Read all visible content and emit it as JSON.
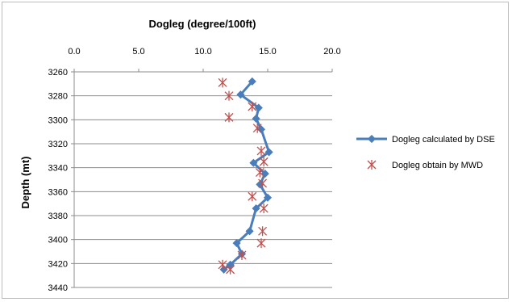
{
  "chart_data": {
    "type": "line",
    "title": "Dogleg (degree/100ft)",
    "xlabel": "",
    "ylabel": "Depth (mt)",
    "xlim": [
      0,
      20
    ],
    "ylim": [
      3260,
      3440
    ],
    "x_axis_position": "top",
    "y_axis_reversed": true,
    "x_ticks": [
      "0.0",
      "5.0",
      "10.0",
      "15.0",
      "20.0"
    ],
    "y_ticks": [
      "3260",
      "3280",
      "3300",
      "3320",
      "3340",
      "3360",
      "3380",
      "3400",
      "3420",
      "3440"
    ],
    "grid": "horizontal",
    "legend_position": "right",
    "series": [
      {
        "name": "Dogleg calculated by DSE",
        "style": "line-with-diamond-markers",
        "color": "#4a7ebb",
        "points": [
          {
            "x": 13.8,
            "y": 3268
          },
          {
            "x": 12.9,
            "y": 3279
          },
          {
            "x": 14.3,
            "y": 3290
          },
          {
            "x": 14.1,
            "y": 3299
          },
          {
            "x": 14.5,
            "y": 3308
          },
          {
            "x": 15.1,
            "y": 3327
          },
          {
            "x": 13.9,
            "y": 3336
          },
          {
            "x": 14.8,
            "y": 3345
          },
          {
            "x": 14.4,
            "y": 3354
          },
          {
            "x": 15.0,
            "y": 3365
          },
          {
            "x": 14.1,
            "y": 3374
          },
          {
            "x": 13.6,
            "y": 3393
          },
          {
            "x": 12.6,
            "y": 3403
          },
          {
            "x": 13.0,
            "y": 3412
          },
          {
            "x": 12.1,
            "y": 3421
          },
          {
            "x": 11.6,
            "y": 3425
          }
        ]
      },
      {
        "name": "Dogleg obtain by MWD",
        "style": "asterisk-markers",
        "color": "#c0504d",
        "points": [
          {
            "x": 11.5,
            "y": 3269
          },
          {
            "x": 12.0,
            "y": 3280
          },
          {
            "x": 13.8,
            "y": 3289
          },
          {
            "x": 12.0,
            "y": 3298
          },
          {
            "x": 14.2,
            "y": 3307
          },
          {
            "x": 14.5,
            "y": 3326
          },
          {
            "x": 14.7,
            "y": 3335
          },
          {
            "x": 14.4,
            "y": 3344
          },
          {
            "x": 14.6,
            "y": 3353
          },
          {
            "x": 13.8,
            "y": 3364
          },
          {
            "x": 14.7,
            "y": 3374
          },
          {
            "x": 14.6,
            "y": 3393
          },
          {
            "x": 14.5,
            "y": 3403
          },
          {
            "x": 13.0,
            "y": 3413
          },
          {
            "x": 11.5,
            "y": 3421
          },
          {
            "x": 12.1,
            "y": 3425
          }
        ]
      }
    ]
  }
}
